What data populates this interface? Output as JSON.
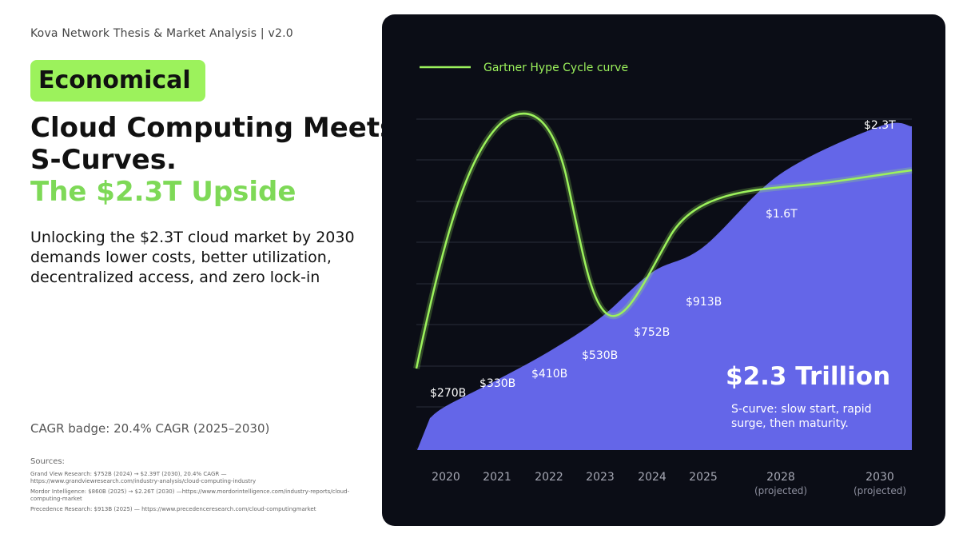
{
  "header": "Kova Network Thesis & Market Analysis | v2.0",
  "badge": "Economical",
  "title": {
    "line1": "Cloud Computing Meets",
    "line2": "S-Curves.",
    "accent": "The $2.3T Upside"
  },
  "description": "Unlocking the $2.3T cloud market by 2030 demands lower costs, better utilization, decentralized access, and zero lock-in",
  "cagr": "CAGR badge: 20.4% CAGR (2025–2030)",
  "sources": {
    "label": "Sources:",
    "items": [
      "Grand View Research: $752B (2024) → $2.39T (2030), 20.4% CAGR — https://www.grandviewresearch.com/industry-analysis/cloud-computing-industry",
      "Mordor Intelligence: $860B (2025) → $2.26T (2030) —https://www.mordorintelligence.com/industry-reports/cloud-computing-market",
      "Precedence Research: $913B (2025) — https://www.precedenceresearch.com/cloud-computingmarket"
    ]
  },
  "chart_data": {
    "type": "area",
    "legend": {
      "label": "Gartner Hype Cycle curve",
      "position": "top-left"
    },
    "categories": [
      "2020",
      "2021",
      "2022",
      "2023",
      "2024",
      "2025",
      "2028",
      "2030"
    ],
    "category_notes": [
      "",
      "",
      "",
      "",
      "",
      "",
      "(projected)",
      "(projected)"
    ],
    "series": [
      {
        "values": [
          270,
          330,
          410,
          530,
          752,
          913,
          1600,
          2300
        ],
        "value_labels": [
          "$270B",
          "$330B",
          "$410B",
          "$530B",
          "$752B",
          "$913B",
          "$1.6T",
          "$2.3T"
        ]
      }
    ],
    "grid": true,
    "annotation": {
      "headline": "$2.3 Trillion",
      "text_line1": "S-curve: slow start, rapid",
      "text_line2": "surge, then maturity."
    },
    "colors": {
      "area": "#6466e8",
      "curve": "#9cf25c",
      "background": "#0b0d16",
      "accent": "#7ed957"
    }
  }
}
